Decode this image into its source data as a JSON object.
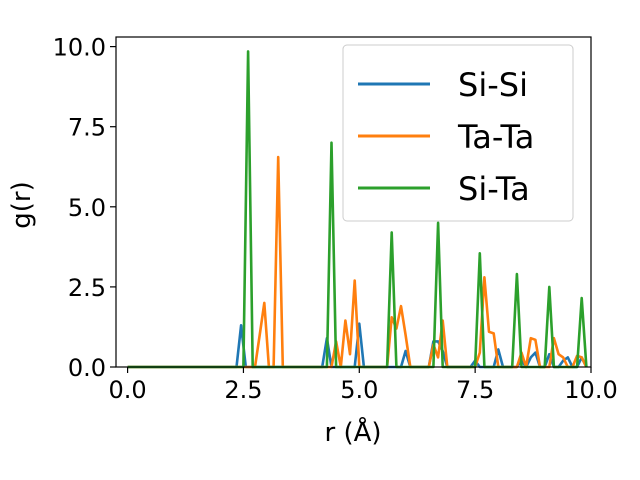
{
  "chart_data": {
    "type": "line",
    "xlabel": "r (Å)",
    "ylabel": "g(r)",
    "xlim": [
      -0.25,
      10.0
    ],
    "ylim": [
      0,
      10.3
    ],
    "x_ticks": [
      "0.0",
      "2.5",
      "5.0",
      "7.5",
      "10.0"
    ],
    "y_ticks": [
      "0.0",
      "2.5",
      "5.0",
      "7.5",
      "10.0"
    ],
    "x_tick_values": [
      0,
      2.5,
      5.0,
      7.5,
      10.0
    ],
    "y_tick_values": [
      0,
      2.5,
      5.0,
      7.5,
      10.0
    ],
    "grid": false,
    "legend": "top-right",
    "series": [
      {
        "name": "Si-Si",
        "color": "#1f77b4",
        "x": [
          0,
          2.35,
          2.45,
          2.55,
          2.65,
          4.2,
          4.3,
          4.4,
          4.9,
          5.0,
          5.1,
          5.9,
          6.0,
          6.1,
          6.5,
          6.6,
          6.7,
          6.8,
          6.9,
          7.4,
          7.5,
          7.6,
          7.9,
          8.0,
          8.1,
          8.4,
          8.5,
          8.6,
          8.7,
          8.8,
          8.9,
          9.0,
          9.1,
          9.2,
          9.3,
          9.4,
          9.5,
          9.6,
          9.7,
          9.8,
          9.9
        ],
        "y": [
          0,
          0,
          1.3,
          0,
          0,
          0,
          0.9,
          0,
          0,
          1.35,
          0,
          0,
          0.5,
          0,
          0,
          0.8,
          0.8,
          0.5,
          0,
          0,
          0.2,
          0,
          0,
          0.55,
          0,
          0,
          0.2,
          0,
          0.3,
          0.45,
          0,
          0,
          0.4,
          0,
          0,
          0.2,
          0.3,
          0,
          0,
          0.3,
          0
        ]
      },
      {
        "name": "Ta-Ta",
        "color": "#ff7f0e",
        "x": [
          0,
          2.75,
          2.85,
          2.95,
          3.05,
          3.15,
          3.25,
          3.35,
          4.4,
          4.5,
          4.6,
          4.7,
          4.8,
          4.9,
          5.0,
          5.1,
          5.5,
          5.6,
          5.7,
          5.8,
          5.9,
          6.0,
          6.1,
          6.2,
          6.5,
          6.6,
          6.7,
          6.8,
          6.9,
          7.5,
          7.6,
          7.7,
          7.8,
          7.9,
          8.0,
          8.1,
          8.4,
          8.5,
          8.6,
          8.7,
          8.8,
          8.9,
          9.1,
          9.2,
          9.3,
          9.4,
          9.5,
          9.6,
          9.7,
          9.8,
          9.9
        ],
        "y": [
          0,
          0,
          1.0,
          2.0,
          0,
          0,
          6.55,
          0,
          0,
          0.8,
          0,
          1.45,
          0.4,
          2.7,
          0,
          0,
          0,
          0,
          1.55,
          1.2,
          1.9,
          1.0,
          0,
          0,
          0,
          0.7,
          0.3,
          1.45,
          0,
          0,
          0.45,
          2.8,
          1.1,
          1.05,
          0,
          0,
          0,
          0.45,
          0,
          0.9,
          0.85,
          0,
          0,
          0.9,
          0.4,
          0.3,
          0,
          0,
          0.35,
          0.3,
          0
        ]
      },
      {
        "name": "Si-Ta",
        "color": "#2ca02c",
        "x": [
          0,
          2.5,
          2.6,
          2.7,
          4.3,
          4.4,
          4.5,
          5.6,
          5.7,
          5.8,
          6.6,
          6.7,
          6.8,
          7.5,
          7.6,
          7.7,
          8.3,
          8.4,
          8.5,
          9.0,
          9.1,
          9.2,
          9.7,
          9.8,
          9.9
        ],
        "y": [
          0,
          0,
          9.85,
          0,
          0,
          7.0,
          0,
          0,
          4.2,
          0,
          0,
          4.5,
          0,
          0,
          3.55,
          0,
          0,
          2.9,
          0,
          0,
          2.5,
          0,
          0,
          2.15,
          0
        ]
      }
    ]
  }
}
